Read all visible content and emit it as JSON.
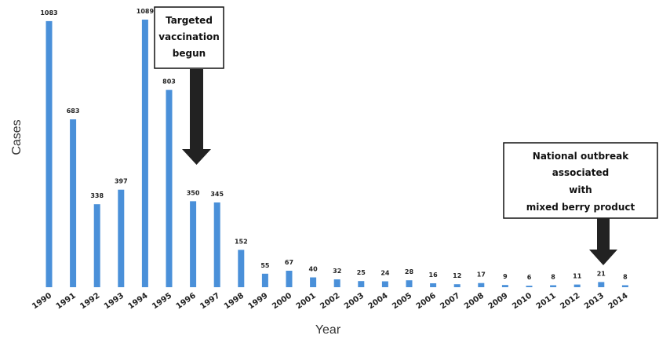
{
  "chart_data": {
    "type": "bar",
    "title": "",
    "xlabel": "Year",
    "ylabel": "Cases",
    "ylim": [
      0,
      1100
    ],
    "grid": false,
    "bar_color": "#4a90d9",
    "categories": [
      "1990",
      "1991",
      "1992",
      "1993",
      "1994",
      "1995",
      "1996",
      "1997",
      "1998",
      "1999",
      "2000",
      "2001",
      "2002",
      "2003",
      "2004",
      "2005",
      "2006",
      "2007",
      "2008",
      "2009",
      "2010",
      "2011",
      "2012",
      "2013",
      "2014"
    ],
    "values": [
      1083,
      683,
      338,
      397,
      1089,
      803,
      350,
      345,
      152,
      55,
      67,
      40,
      32,
      25,
      24,
      28,
      16,
      12,
      17,
      9,
      6,
      8,
      11,
      21,
      8
    ],
    "annotations": [
      {
        "year": "1996",
        "lines": [
          "Targeted",
          "vaccination",
          "begun"
        ]
      },
      {
        "year": "2013",
        "lines": [
          "National outbreak",
          "associated",
          "with",
          "mixed berry product"
        ]
      }
    ]
  }
}
